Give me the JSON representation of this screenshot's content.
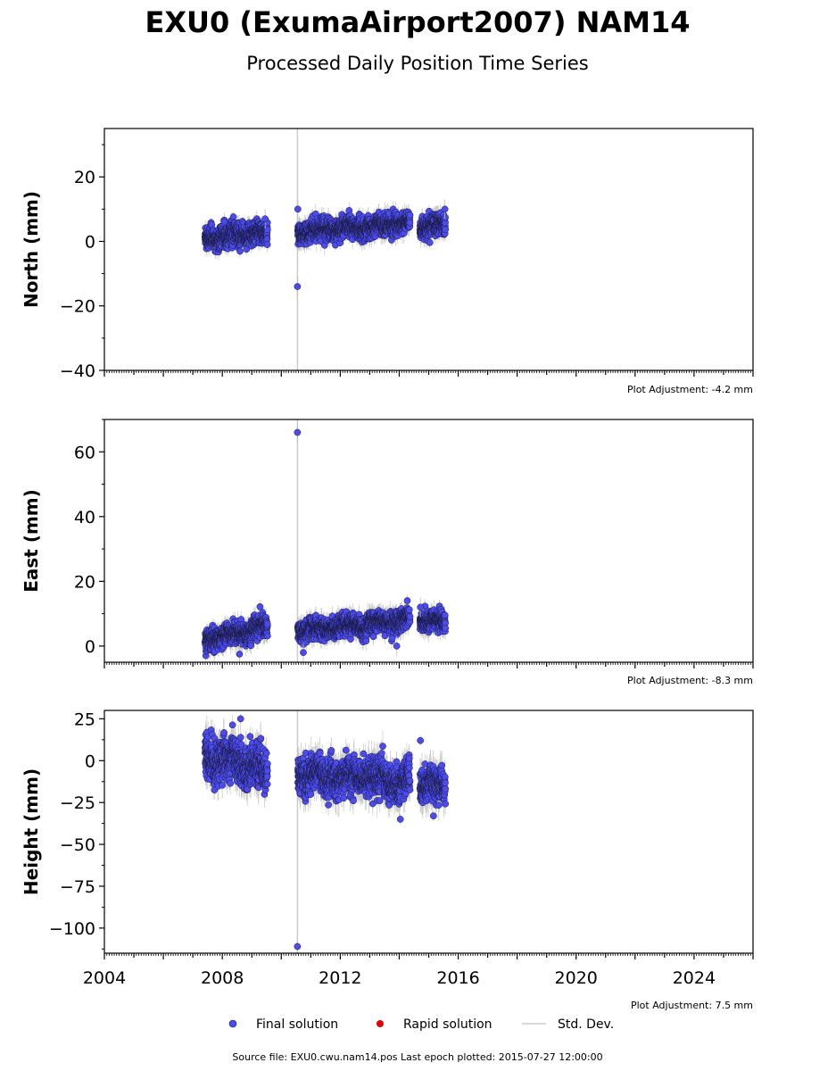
{
  "title": "EXU0 (ExumaAirport2007) NAM14",
  "subtitle": "Processed Daily Position Time Series",
  "source_text": "Source file: EXU0.cwu.nam14.pos  Last epoch plotted: 2015-07-27 12:00:00",
  "legend": {
    "placement": "bottom-center",
    "items": [
      {
        "label": "Final solution",
        "type": "point",
        "color": "#4444ee"
      },
      {
        "label": "Rapid solution",
        "type": "point",
        "color": "#dd0000"
      },
      {
        "label": "Std. Dev.",
        "type": "line",
        "color": "#cccccc"
      }
    ]
  },
  "colors": {
    "final": "#4b4bf0",
    "final_edge": "#1a1a40",
    "rapid": "#dd0000",
    "std_dev": "#bbbbbb",
    "marker_line": "#cccccc"
  },
  "chart_data": [
    {
      "type": "scatter",
      "ylabel": "North (mm)",
      "ylim": [
        -40,
        35
      ],
      "yticks": [
        -40,
        -20,
        0,
        20
      ],
      "xlim": [
        "2004-01-01",
        "2026-01-01"
      ],
      "show_xtick_labels": false,
      "adjustment": "Plot Adjustment: -4.2 mm",
      "equipment_change": "2010-07-20",
      "segments": [
        {
          "start": "2007-06-01",
          "end": "2009-07-15",
          "y_start": 1.5,
          "y_end": 2.5,
          "scatter": 2.2,
          "sd": 2.0
        },
        {
          "start": "2010-07-25",
          "end": "2014-05-15",
          "y_start": 3.0,
          "y_end": 5.5,
          "scatter": 2.0,
          "sd": 2.5
        },
        {
          "start": "2014-09-15",
          "end": "2015-07-27",
          "y_start": 4.5,
          "y_end": 5.0,
          "scatter": 2.0,
          "sd": 2.5
        }
      ],
      "outliers": [
        {
          "x": "2010-07-20",
          "y": -14
        },
        {
          "x": "2010-07-25",
          "y": 10
        },
        {
          "x": "2015-07-20",
          "y": 10
        },
        {
          "x": "2009-06-15",
          "y": 7
        }
      ]
    },
    {
      "type": "scatter",
      "ylabel": "East (mm)",
      "ylim": [
        -5,
        70
      ],
      "yticks": [
        0,
        20,
        40,
        60
      ],
      "xlim": [
        "2004-01-01",
        "2026-01-01"
      ],
      "show_xtick_labels": false,
      "adjustment": "Plot Adjustment: -8.3 mm",
      "equipment_change": "2010-07-20",
      "segments": [
        {
          "start": "2007-06-01",
          "end": "2009-07-15",
          "y_start": 2.0,
          "y_end": 6.0,
          "scatter": 2.0,
          "sd": 2.5
        },
        {
          "start": "2010-07-25",
          "end": "2014-05-15",
          "y_start": 5.0,
          "y_end": 8.0,
          "scatter": 2.0,
          "sd": 2.5
        },
        {
          "start": "2014-09-15",
          "end": "2015-07-27",
          "y_start": 8.0,
          "y_end": 8.0,
          "scatter": 1.8,
          "sd": 2.5
        }
      ],
      "outliers": [
        {
          "x": "2010-07-20",
          "y": 66
        },
        {
          "x": "2010-10-01",
          "y": -2
        },
        {
          "x": "2008-08-01",
          "y": -2.5
        },
        {
          "x": "2013-12-01",
          "y": 0
        },
        {
          "x": "2014-09-20",
          "y": 12
        }
      ]
    },
    {
      "type": "scatter",
      "ylabel": "Height (mm)",
      "ylim": [
        -115,
        30
      ],
      "yticks": [
        -100,
        -75,
        -50,
        -25,
        0,
        25
      ],
      "xlim": [
        "2004-01-01",
        "2026-01-01"
      ],
      "xticks": [
        2004,
        2008,
        2012,
        2016,
        2020,
        2024
      ],
      "show_xtick_labels": true,
      "adjustment": "Plot Adjustment: 7.5 mm",
      "equipment_change": "2010-07-20",
      "segments": [
        {
          "start": "2007-06-01",
          "end": "2009-07-15",
          "y_start": 3.0,
          "y_end": -5.0,
          "scatter": 7.5,
          "sd": 8.0
        },
        {
          "start": "2010-07-25",
          "end": "2014-05-15",
          "y_start": -8.0,
          "y_end": -12.0,
          "scatter": 6.5,
          "sd": 8.0
        },
        {
          "start": "2014-09-15",
          "end": "2015-07-27",
          "y_start": -15.0,
          "y_end": -15.0,
          "scatter": 6.0,
          "sd": 8.0
        }
      ],
      "outliers": [
        {
          "x": "2010-07-20",
          "y": -111
        },
        {
          "x": "2014-09-20",
          "y": 12
        },
        {
          "x": "2008-08-15",
          "y": 25
        },
        {
          "x": "2014-01-15",
          "y": -35
        },
        {
          "x": "2015-03-01",
          "y": -33
        }
      ]
    }
  ]
}
